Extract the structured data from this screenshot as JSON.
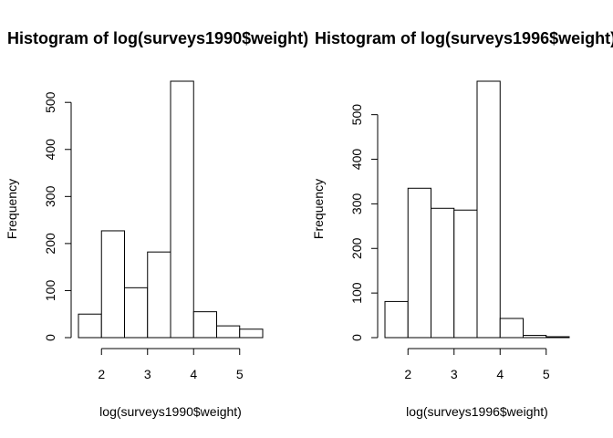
{
  "chart_data": [
    {
      "type": "bar",
      "title": "Histogram of log(surveys1990$weight)",
      "xlabel": "log(surveys1990$weight)",
      "ylabel": "Frequency",
      "bins": [
        [
          1.5,
          2.0
        ],
        [
          2.0,
          2.5
        ],
        [
          2.5,
          3.0
        ],
        [
          3.0,
          3.5
        ],
        [
          3.5,
          4.0
        ],
        [
          4.0,
          4.5
        ],
        [
          4.5,
          5.0
        ],
        [
          5.0,
          5.5
        ]
      ],
      "values": [
        50,
        227,
        106,
        182,
        545,
        55,
        25,
        18
      ],
      "xticks": [
        2,
        3,
        4,
        5
      ],
      "yticks": [
        0,
        100,
        200,
        300,
        400,
        500
      ],
      "xlim": [
        1.5,
        5.5
      ],
      "ylim": [
        0,
        545
      ],
      "grid": false
    },
    {
      "type": "bar",
      "title": "Histogram of log(surveys1996$weight)",
      "xlabel": "log(surveys1996$weight)",
      "ylabel": "Frequency",
      "bins": [
        [
          1.5,
          2.0
        ],
        [
          2.0,
          2.5
        ],
        [
          2.5,
          3.0
        ],
        [
          3.0,
          3.5
        ],
        [
          3.5,
          4.0
        ],
        [
          4.0,
          4.5
        ],
        [
          4.5,
          5.0
        ],
        [
          5.0,
          5.5
        ]
      ],
      "values": [
        81,
        335,
        290,
        286,
        575,
        43,
        5,
        2
      ],
      "xticks": [
        2,
        3,
        4,
        5
      ],
      "yticks": [
        0,
        100,
        200,
        300,
        400,
        500
      ],
      "xlim": [
        1.5,
        5.5
      ],
      "ylim": [
        0,
        575
      ],
      "grid": false
    }
  ]
}
